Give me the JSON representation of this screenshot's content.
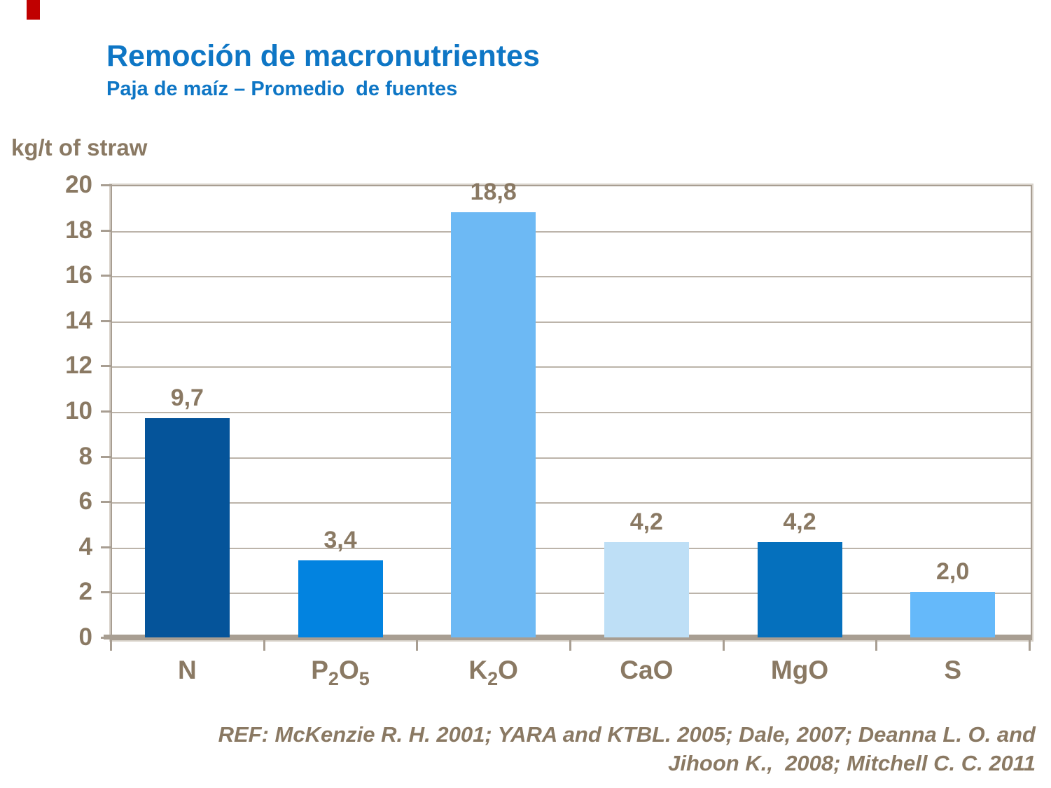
{
  "slide": {
    "title": "Remoción de macronutrientes",
    "subtitle": "Paja de maíz – Promedio  de fuentes",
    "y_axis_title": "kg/t of straw",
    "references": {
      "line1": "REF: McKenzie R. H. 2001; YARA and KTBL. 2005; Dale, 2007; Deanna L. O. and",
      "line2": "Jihoon K.,  2008; Mitchell C. C. 2011"
    },
    "colors": {
      "title_blue": "#0E76C5",
      "text_brown": "#8A7963",
      "axis_tan": "#A89E92",
      "gridline": "#BCB4AA",
      "border_light": "#D8D2CA",
      "red_mark": "#C00000"
    }
  },
  "chart_data": {
    "type": "bar",
    "title": "Remoción de macronutrientes",
    "subtitle": "Paja de maíz – Promedio de fuentes",
    "xlabel": "",
    "ylabel": "kg/t of straw",
    "categories": [
      "N",
      "P2O5",
      "K2O",
      "CaO",
      "MgO",
      "S"
    ],
    "category_parts": [
      [
        [
          "N",
          false
        ]
      ],
      [
        [
          "P",
          false
        ],
        [
          "2",
          true
        ],
        [
          "O",
          false
        ],
        [
          "5",
          true
        ]
      ],
      [
        [
          "K",
          false
        ],
        [
          "2",
          true
        ],
        [
          "O",
          false
        ]
      ],
      [
        [
          "CaO",
          false
        ]
      ],
      [
        [
          "MgO",
          false
        ]
      ],
      [
        [
          "S",
          false
        ]
      ]
    ],
    "values": [
      9.7,
      3.4,
      18.8,
      4.2,
      4.2,
      2.0
    ],
    "value_labels": [
      "9,7",
      "3,4",
      "18,8",
      "4,2",
      "4,2",
      "2,0"
    ],
    "bar_colors": [
      "#05549A",
      "#0283E0",
      "#6DB9F4",
      "#BEDFF6",
      "#0570BD",
      "#65B9FA"
    ],
    "ylim": [
      0,
      20
    ],
    "ytick_step": 2,
    "grid": true,
    "legend": false
  }
}
